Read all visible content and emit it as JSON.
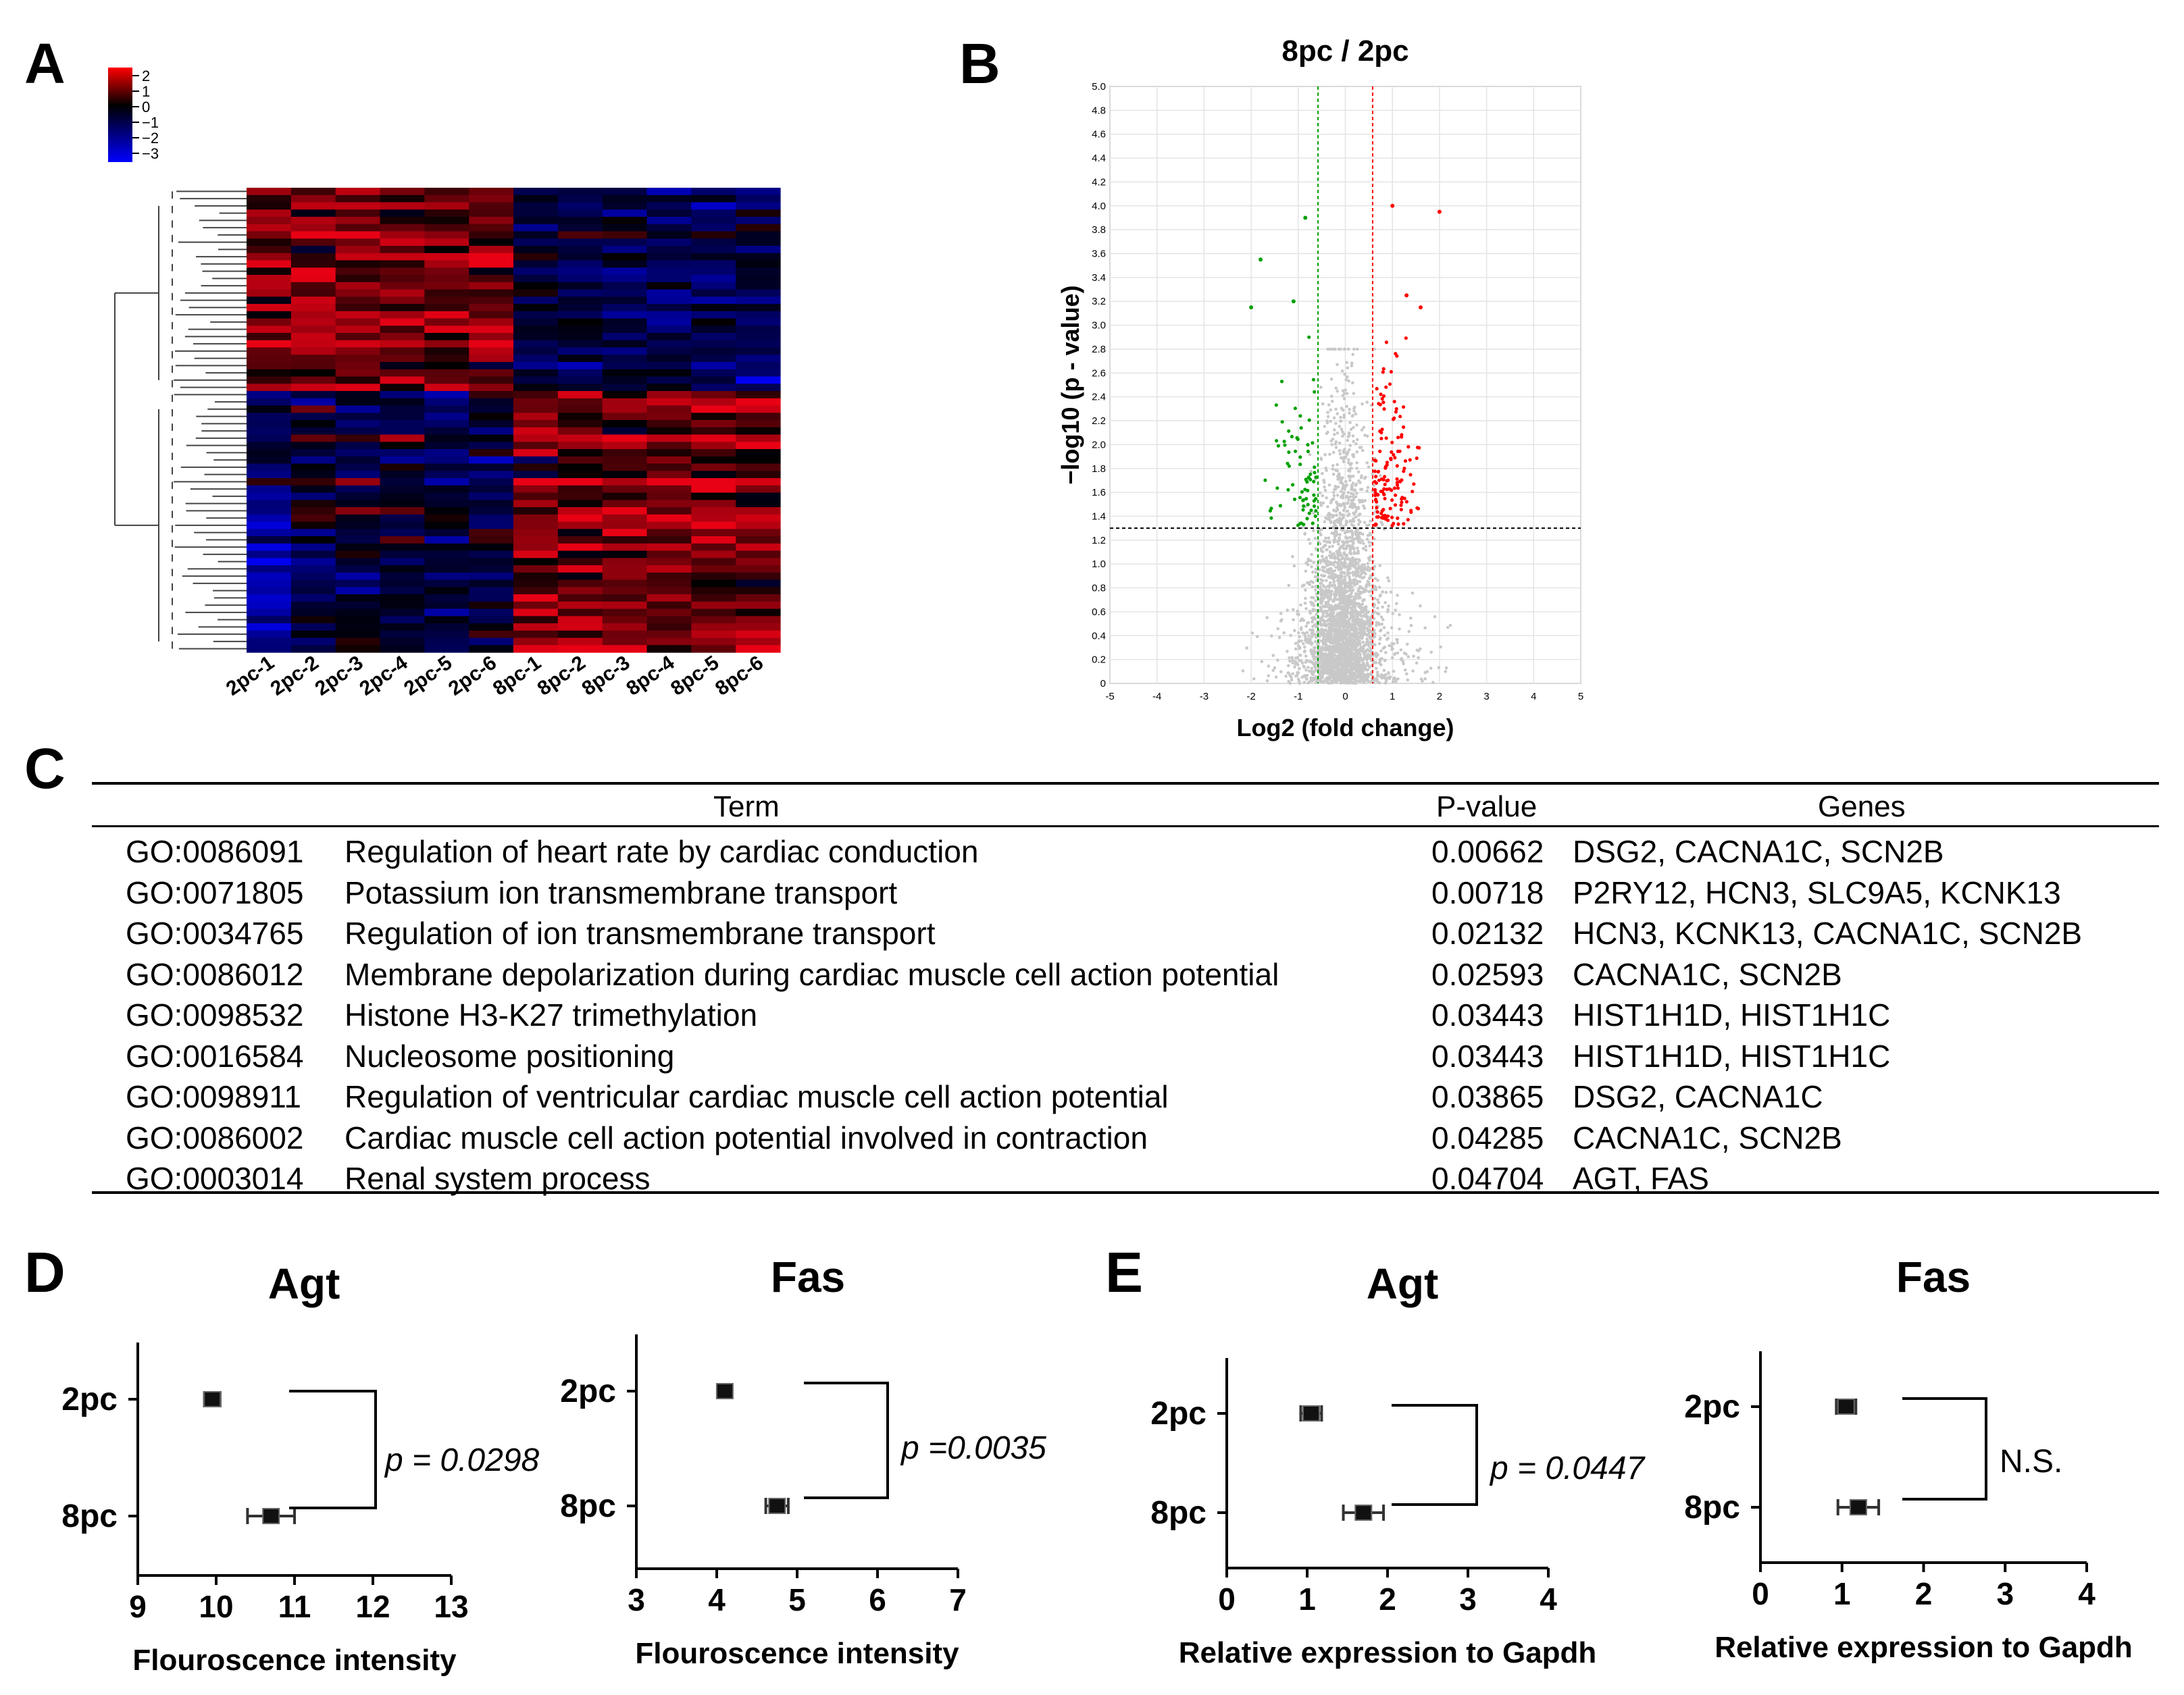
{
  "panel_labels": {
    "a": "A",
    "b": "B",
    "c": "C",
    "d": "D",
    "e": "E"
  },
  "colors": {
    "heat_high": "#e8001e",
    "heat_mid": "#000000",
    "heat_low": "#0000e8",
    "up": "#ff0000",
    "down": "#00a000",
    "nonsig": "#c8c8c8"
  },
  "heatmap": {
    "legend_ticks": [
      "2",
      "1",
      "0",
      "−1",
      "−2",
      "−3"
    ],
    "samples": [
      "2pc-1",
      "2pc-2",
      "2pc-3",
      "2pc-4",
      "2pc-5",
      "2pc-6",
      "8pc-1",
      "8pc-2",
      "8pc-3",
      "8pc-4",
      "8pc-5",
      "8pc-6"
    ]
  },
  "chart_data": [
    {
      "type": "scatter",
      "panel": "B",
      "title": "8pc / 2pc",
      "xlabel": "Log2 (fold change)",
      "ylabel": "−log10 (p - value)",
      "xlim": [
        -5,
        5
      ],
      "ylim": [
        0,
        5
      ],
      "x_ticks": [
        "-5",
        "-4",
        "-3",
        "-2",
        "-1",
        "0",
        "1",
        "2",
        "3",
        "4",
        "5"
      ],
      "y_ticks": [
        "0",
        "0.2",
        "0.4",
        "0.6",
        "0.8",
        "1.0",
        "1.2",
        "1.4",
        "1.6",
        "1.8",
        "2.0",
        "2.2",
        "2.4",
        "2.6",
        "2.8",
        "3.0",
        "3.2",
        "3.4",
        "3.6",
        "3.8",
        "4.0",
        "4.2",
        "4.4",
        "4.6",
        "4.8",
        "5.0"
      ],
      "threshold_log2fc": [
        -0.58,
        0.58
      ],
      "threshold_neglog10p": 1.3,
      "annotations": {
        "down_extreme_points": [
          [
            -0.85,
            3.9
          ],
          [
            -1.8,
            3.55
          ],
          [
            -2.0,
            3.15
          ],
          [
            -1.1,
            3.2
          ]
        ],
        "up_extreme_points": [
          [
            1.0,
            4.0
          ],
          [
            2.0,
            3.95
          ],
          [
            1.6,
            3.15
          ],
          [
            1.3,
            3.25
          ]
        ]
      }
    },
    {
      "type": "dot-errorbar",
      "panel": "D",
      "title": "Agt",
      "categories": [
        "2pc",
        "8pc"
      ],
      "values": [
        9.95,
        10.7
      ],
      "errors": [
        0.1,
        0.3
      ],
      "xlabel": "Flouroscence intensity",
      "xlim": [
        9,
        13
      ],
      "x_ticks": [
        "9",
        "10",
        "11",
        "12",
        "13"
      ],
      "annotation": "p = 0.0298"
    },
    {
      "type": "dot-errorbar",
      "panel": "D",
      "title": "Fas",
      "categories": [
        "2pc",
        "8pc"
      ],
      "values": [
        4.1,
        4.75
      ],
      "errors": [
        0.08,
        0.14
      ],
      "xlabel": "Flouroscence intensity",
      "xlim": [
        3,
        7
      ],
      "x_ticks": [
        "3",
        "4",
        "5",
        "6",
        "7"
      ],
      "annotation": "p =0.0035"
    },
    {
      "type": "dot-errorbar",
      "panel": "E",
      "title": "Agt",
      "categories": [
        "2pc",
        "8pc"
      ],
      "values": [
        1.05,
        1.7
      ],
      "errors": [
        0.13,
        0.25
      ],
      "xlabel": "Relative expression to Gapdh",
      "xlim": [
        0,
        4
      ],
      "x_ticks": [
        "0",
        "1",
        "2",
        "3",
        "4"
      ],
      "annotation": "p = 0.0447"
    },
    {
      "type": "dot-errorbar",
      "panel": "E",
      "title": "Fas",
      "categories": [
        "2pc",
        "8pc"
      ],
      "values": [
        1.05,
        1.2
      ],
      "errors": [
        0.12,
        0.25
      ],
      "xlabel": "Relative expression to Gapdh",
      "xlim": [
        0,
        4
      ],
      "x_ticks": [
        "0",
        "1",
        "2",
        "3",
        "4"
      ],
      "annotation": "N.S."
    }
  ],
  "go_table": {
    "headers": {
      "term": "Term",
      "pvalue": "P-value",
      "genes": "Genes"
    },
    "rows": [
      {
        "id": "GO:0086091",
        "term": "Regulation of heart rate by cardiac conduction",
        "p": "0.00662",
        "genes": "DSG2, CACNA1C, SCN2B"
      },
      {
        "id": "GO:0071805",
        "term": "Potassium ion transmembrane transport",
        "p": "0.00718",
        "genes": "P2RY12, HCN3, SLC9A5, KCNK13"
      },
      {
        "id": "GO:0034765",
        "term": "Regulation of ion transmembrane transport",
        "p": "0.02132",
        "genes": "HCN3, KCNK13, CACNA1C, SCN2B"
      },
      {
        "id": "GO:0086012",
        "term": "Membrane depolarization during cardiac muscle cell action potential",
        "p": "0.02593",
        "genes": "CACNA1C, SCN2B"
      },
      {
        "id": "GO:0098532",
        "term": "Histone H3-K27 trimethylation",
        "p": "0.03443",
        "genes": "HIST1H1D, HIST1H1C"
      },
      {
        "id": "GO:0016584",
        "term": "Nucleosome positioning",
        "p": "0.03443",
        "genes": "HIST1H1D, HIST1H1C"
      },
      {
        "id": "GO:0098911",
        "term": "Regulation of ventricular cardiac muscle cell action potential",
        "p": "0.03865",
        "genes": "DSG2, CACNA1C"
      },
      {
        "id": "GO:0086002",
        "term": "Cardiac muscle cell action potential involved in contraction",
        "p": "0.04285",
        "genes": "CACNA1C, SCN2B"
      },
      {
        "id": "GO:0003014",
        "term": "Renal system process",
        "p": "0.04704",
        "genes": "AGT, FAS"
      }
    ]
  }
}
